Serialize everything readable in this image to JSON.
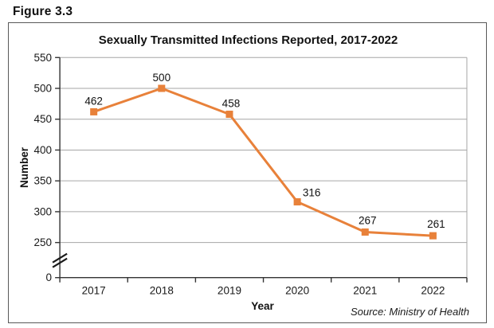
{
  "figure_label": "Figure 3.3",
  "chart_data": {
    "type": "line",
    "title": "Sexually Transmitted Infections Reported, 2017-2022",
    "xlabel": "Year",
    "ylabel": "Number",
    "categories": [
      "2017",
      "2018",
      "2019",
      "2020",
      "2021",
      "2022"
    ],
    "values": [
      462,
      500,
      458,
      316,
      267,
      261
    ],
    "data_labels": [
      "462",
      "500",
      "458",
      "316",
      "267",
      "261"
    ],
    "y_ticks": [
      0,
      250,
      300,
      350,
      400,
      450,
      500,
      550
    ],
    "ylim": [
      0,
      550
    ],
    "axis_break_between": [
      0,
      250
    ],
    "grid": true,
    "legend": false,
    "line_color": "#E8813A",
    "marker": "square",
    "grid_color": "#A6A6A6",
    "axis_color": "#333333",
    "source": "Source: Ministry of Health"
  }
}
